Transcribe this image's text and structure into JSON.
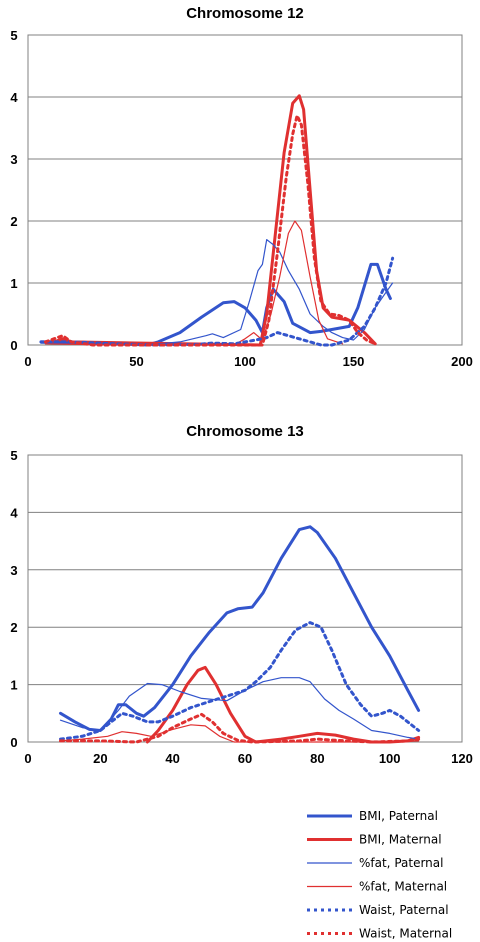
{
  "legend": [
    {
      "label": "BMI, Paternal",
      "color": "#3355cc",
      "width": 3,
      "dash": "solid"
    },
    {
      "label": "BMI, Maternal",
      "color": "#e03030",
      "width": 3,
      "dash": "solid"
    },
    {
      "label": "%fat, Paternal",
      "color": "#3355cc",
      "width": 1.2,
      "dash": "solid"
    },
    {
      "label": "%fat, Maternal",
      "color": "#e03030",
      "width": 1.2,
      "dash": "solid"
    },
    {
      "label": "Waist, Paternal",
      "color": "#3355cc",
      "width": 3,
      "dash": "dotted"
    },
    {
      "label": "Waist, Maternal",
      "color": "#e03030",
      "width": 3,
      "dash": "dotted"
    }
  ],
  "chart_data": [
    {
      "type": "line",
      "title": "Chromosome 12",
      "xlim": [
        0,
        200
      ],
      "ylim": [
        0,
        5
      ],
      "xticks": [
        0,
        50,
        100,
        150,
        200
      ],
      "yticks": [
        0,
        1,
        2,
        3,
        4,
        5
      ],
      "grid": "horizontal",
      "series": [
        {
          "name": "BMI, Paternal",
          "points": [
            [
              6,
              0.05
            ],
            [
              20,
              0.05
            ],
            [
              55,
              0
            ],
            [
              60,
              0.05
            ],
            [
              70,
              0.2
            ],
            [
              80,
              0.45
            ],
            [
              90,
              0.68
            ],
            [
              95,
              0.7
            ],
            [
              100,
              0.6
            ],
            [
              105,
              0.4
            ],
            [
              108,
              0.2
            ],
            [
              110,
              0.6
            ],
            [
              113,
              0.9
            ],
            [
              118,
              0.7
            ],
            [
              122,
              0.35
            ],
            [
              130,
              0.2
            ],
            [
              135,
              0.22
            ],
            [
              140,
              0.25
            ],
            [
              148,
              0.3
            ],
            [
              152,
              0.6
            ],
            [
              158,
              1.3
            ],
            [
              161,
              1.3
            ],
            [
              165,
              0.9
            ],
            [
              167,
              0.75
            ]
          ]
        },
        {
          "name": "BMI, Maternal",
          "points": [
            [
              8,
              0.05
            ],
            [
              12,
              0.05
            ],
            [
              16,
              0.1
            ],
            [
              20,
              0.05
            ],
            [
              107,
              0
            ],
            [
              110,
              0.5
            ],
            [
              114,
              1.8
            ],
            [
              118,
              3.1
            ],
            [
              122,
              3.9
            ],
            [
              125,
              4.02
            ],
            [
              127,
              3.8
            ],
            [
              130,
              2.5
            ],
            [
              133,
              1.2
            ],
            [
              136,
              0.6
            ],
            [
              140,
              0.45
            ],
            [
              148,
              0.4
            ],
            [
              155,
              0.2
            ],
            [
              160,
              0.02
            ]
          ]
        },
        {
          "name": "%fat, Paternal",
          "points": [
            [
              6,
              0.03
            ],
            [
              30,
              0.02
            ],
            [
              55,
              0
            ],
            [
              70,
              0.05
            ],
            [
              82,
              0.15
            ],
            [
              85,
              0.18
            ],
            [
              90,
              0.12
            ],
            [
              98,
              0.25
            ],
            [
              102,
              0.7
            ],
            [
              106,
              1.2
            ],
            [
              108,
              1.3
            ],
            [
              110,
              1.7
            ],
            [
              113,
              1.62
            ],
            [
              116,
              1.5
            ],
            [
              120,
              1.2
            ],
            [
              125,
              0.9
            ],
            [
              130,
              0.5
            ],
            [
              136,
              0.3
            ],
            [
              140,
              0.2
            ],
            [
              145,
              0.12
            ],
            [
              150,
              0.08
            ],
            [
              155,
              0.25
            ],
            [
              160,
              0.6
            ],
            [
              165,
              0.85
            ],
            [
              168,
              1.0
            ]
          ]
        },
        {
          "name": "%fat, Maternal",
          "points": [
            [
              8,
              0.02
            ],
            [
              40,
              0
            ],
            [
              95,
              0
            ],
            [
              100,
              0.1
            ],
            [
              104,
              0.2
            ],
            [
              108,
              0.08
            ],
            [
              112,
              0.5
            ],
            [
              116,
              1.1
            ],
            [
              120,
              1.8
            ],
            [
              123,
              2.0
            ],
            [
              126,
              1.85
            ],
            [
              130,
              1.1
            ],
            [
              134,
              0.4
            ],
            [
              138,
              0.1
            ],
            [
              145,
              0.02
            ]
          ]
        },
        {
          "name": "Waist, Paternal",
          "points": [
            [
              6,
              0.05
            ],
            [
              20,
              0.05
            ],
            [
              40,
              0.02
            ],
            [
              60,
              0
            ],
            [
              78,
              0.01
            ],
            [
              85,
              0.03
            ],
            [
              95,
              0.02
            ],
            [
              105,
              0.08
            ],
            [
              110,
              0.12
            ],
            [
              115,
              0.2
            ],
            [
              120,
              0.15
            ],
            [
              125,
              0.1
            ],
            [
              130,
              0.05
            ],
            [
              135,
              0
            ],
            [
              140,
              0
            ],
            [
              148,
              0.08
            ],
            [
              155,
              0.3
            ],
            [
              160,
              0.6
            ],
            [
              165,
              1.0
            ],
            [
              168,
              1.4
            ]
          ]
        },
        {
          "name": "Waist, Maternal",
          "points": [
            [
              8,
              0.05
            ],
            [
              12,
              0.1
            ],
            [
              16,
              0.15
            ],
            [
              20,
              0.05
            ],
            [
              30,
              0
            ],
            [
              108,
              0
            ],
            [
              111,
              0.4
            ],
            [
              115,
              1.5
            ],
            [
              119,
              2.7
            ],
            [
              122,
              3.4
            ],
            [
              124,
              3.7
            ],
            [
              126,
              3.55
            ],
            [
              129,
              2.6
            ],
            [
              132,
              1.4
            ],
            [
              135,
              0.7
            ],
            [
              139,
              0.5
            ],
            [
              143,
              0.48
            ],
            [
              148,
              0.4
            ],
            [
              152,
              0.2
            ],
            [
              156,
              0.08
            ],
            [
              160,
              0.02
            ]
          ]
        }
      ]
    },
    {
      "type": "line",
      "title": "Chromosome 13",
      "xlim": [
        0,
        120
      ],
      "ylim": [
        0,
        5
      ],
      "xticks": [
        0,
        20,
        40,
        60,
        80,
        100,
        120
      ],
      "yticks": [
        0,
        1,
        2,
        3,
        4,
        5
      ],
      "grid": "horizontal",
      "series": [
        {
          "name": "BMI, Paternal",
          "points": [
            [
              9,
              0.5
            ],
            [
              13,
              0.35
            ],
            [
              17,
              0.22
            ],
            [
              20,
              0.2
            ],
            [
              23,
              0.4
            ],
            [
              25,
              0.65
            ],
            [
              27,
              0.65
            ],
            [
              30,
              0.5
            ],
            [
              32,
              0.45
            ],
            [
              35,
              0.6
            ],
            [
              40,
              1.0
            ],
            [
              45,
              1.5
            ],
            [
              50,
              1.9
            ],
            [
              55,
              2.25
            ],
            [
              58,
              2.32
            ],
            [
              62,
              2.35
            ],
            [
              65,
              2.6
            ],
            [
              70,
              3.2
            ],
            [
              75,
              3.7
            ],
            [
              78,
              3.75
            ],
            [
              80,
              3.65
            ],
            [
              85,
              3.2
            ],
            [
              90,
              2.6
            ],
            [
              95,
              2.0
            ],
            [
              100,
              1.5
            ],
            [
              105,
              0.9
            ],
            [
              108,
              0.55
            ]
          ]
        },
        {
          "name": "BMI, Maternal",
          "points": [
            [
              33,
              0
            ],
            [
              36,
              0.2
            ],
            [
              40,
              0.55
            ],
            [
              44,
              1.0
            ],
            [
              47,
              1.25
            ],
            [
              49,
              1.3
            ],
            [
              52,
              1.0
            ],
            [
              56,
              0.5
            ],
            [
              60,
              0.1
            ],
            [
              63,
              0
            ],
            [
              70,
              0.05
            ],
            [
              75,
              0.1
            ],
            [
              80,
              0.15
            ],
            [
              85,
              0.12
            ],
            [
              90,
              0.05
            ],
            [
              95,
              0
            ],
            [
              100,
              0
            ],
            [
              105,
              0.02
            ],
            [
              108,
              0.08
            ]
          ]
        },
        {
          "name": "%fat, Paternal",
          "points": [
            [
              9,
              0.38
            ],
            [
              15,
              0.25
            ],
            [
              20,
              0.2
            ],
            [
              25,
              0.55
            ],
            [
              28,
              0.8
            ],
            [
              33,
              1.02
            ],
            [
              37,
              1.0
            ],
            [
              42,
              0.88
            ],
            [
              48,
              0.76
            ],
            [
              55,
              0.72
            ],
            [
              60,
              0.9
            ],
            [
              65,
              1.05
            ],
            [
              70,
              1.12
            ],
            [
              75,
              1.12
            ],
            [
              78,
              1.05
            ],
            [
              82,
              0.75
            ],
            [
              86,
              0.55
            ],
            [
              90,
              0.4
            ],
            [
              95,
              0.2
            ],
            [
              100,
              0.15
            ],
            [
              105,
              0.08
            ],
            [
              108,
              0.05
            ]
          ]
        },
        {
          "name": "%fat, Maternal",
          "points": [
            [
              9,
              0.02
            ],
            [
              15,
              0.05
            ],
            [
              22,
              0.1
            ],
            [
              26,
              0.18
            ],
            [
              30,
              0.15
            ],
            [
              34,
              0.1
            ],
            [
              40,
              0.22
            ],
            [
              45,
              0.3
            ],
            [
              49,
              0.28
            ],
            [
              53,
              0.1
            ],
            [
              57,
              0
            ],
            [
              80,
              0
            ],
            [
              100,
              0
            ],
            [
              108,
              0.02
            ]
          ]
        },
        {
          "name": "Waist, Paternal",
          "points": [
            [
              9,
              0.05
            ],
            [
              15,
              0.1
            ],
            [
              20,
              0.2
            ],
            [
              23,
              0.35
            ],
            [
              26,
              0.5
            ],
            [
              29,
              0.45
            ],
            [
              33,
              0.35
            ],
            [
              36,
              0.35
            ],
            [
              40,
              0.45
            ],
            [
              45,
              0.6
            ],
            [
              50,
              0.7
            ],
            [
              55,
              0.8
            ],
            [
              60,
              0.9
            ],
            [
              63,
              1.05
            ],
            [
              67,
              1.3
            ],
            [
              70,
              1.6
            ],
            [
              74,
              1.95
            ],
            [
              78,
              2.08
            ],
            [
              81,
              2.0
            ],
            [
              84,
              1.6
            ],
            [
              88,
              1.0
            ],
            [
              92,
              0.65
            ],
            [
              95,
              0.45
            ],
            [
              98,
              0.5
            ],
            [
              100,
              0.55
            ],
            [
              103,
              0.45
            ],
            [
              106,
              0.3
            ],
            [
              108,
              0.2
            ]
          ]
        },
        {
          "name": "Waist, Maternal",
          "points": [
            [
              9,
              0.02
            ],
            [
              20,
              0.02
            ],
            [
              30,
              0
            ],
            [
              36,
              0.1
            ],
            [
              40,
              0.25
            ],
            [
              45,
              0.4
            ],
            [
              48,
              0.48
            ],
            [
              51,
              0.35
            ],
            [
              54,
              0.15
            ],
            [
              58,
              0.03
            ],
            [
              62,
              0
            ],
            [
              75,
              0.02
            ],
            [
              80,
              0.05
            ],
            [
              85,
              0.03
            ],
            [
              95,
              0
            ],
            [
              105,
              0.02
            ],
            [
              108,
              0.05
            ]
          ]
        }
      ]
    }
  ]
}
